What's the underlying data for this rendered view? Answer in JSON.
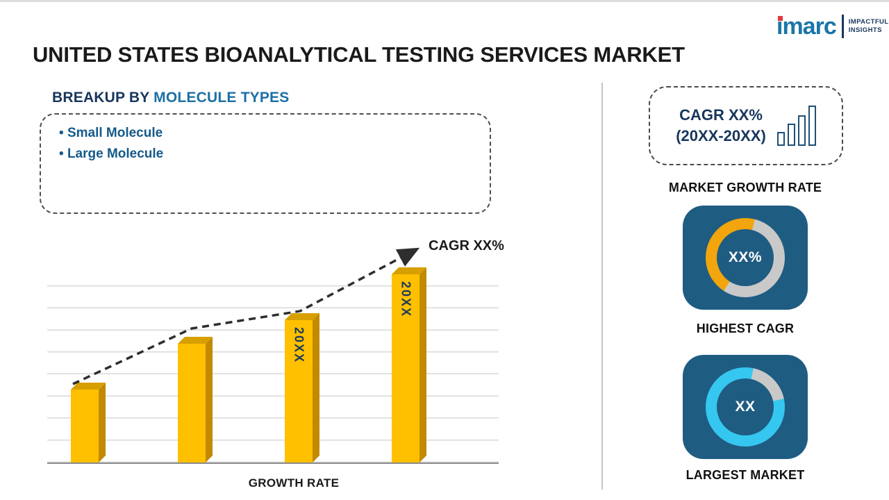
{
  "title": "UNITED STATES BIOANALYTICAL TESTING SERVICES MARKET",
  "logo": {
    "brand": "imarc",
    "tagline_line1": "IMPACTFUL",
    "tagline_line2": "INSIGHTS"
  },
  "breakup": {
    "heading_prefix": "BREAKUP BY",
    "heading_highlight": "MOLECULE TYPES",
    "items": [
      {
        "label": "Small Molecule"
      },
      {
        "label": "Large Molecule"
      }
    ]
  },
  "chart_data": {
    "type": "bar",
    "categories": [
      "",
      "",
      "20XX",
      "20XX"
    ],
    "values": [
      37,
      60,
      72,
      95
    ],
    "bar_labels": [
      "",
      "",
      "20XX",
      "20XX"
    ],
    "trend_label": "CAGR XX%",
    "title": "",
    "xlabel": "GROWTH RATE",
    "ylabel": "",
    "ylim": [
      0,
      100
    ],
    "grid": true,
    "legend": false,
    "bar_color": "#ffc000",
    "trend_style": "dashed-arrow"
  },
  "side_panel": {
    "cagr_card": {
      "line1": "CAGR XX%",
      "line2": "(20XX-20XX)"
    },
    "market_growth_rate_label": "MARKET GROWTH RATE",
    "highest_cagr": {
      "value": "XX%",
      "label": "HIGHEST CAGR"
    },
    "largest_market": {
      "value": "XX",
      "label": "LARGEST MARKET"
    }
  },
  "colors": {
    "ink": "#1a1a1a",
    "navy": "#1f5c82",
    "heading-dark": "#17365c",
    "heading-blue": "#1d6fa5",
    "bullet-blue": "#155a8a",
    "gold": "#ffc000",
    "gold-side": "#c18a00",
    "gold-top": "#d79f00",
    "bar-label": "#1b3a5c",
    "cyan": "#35c7f0",
    "silver": "#c9c9c9",
    "orange": "#f2a50c",
    "logo-blue": "#1b75a9",
    "logo-dark": "#17365c",
    "logo-red": "#e23b3f",
    "trend": "#2e2e2e",
    "grid-line": "#d9d9d9",
    "divider": "#c4c4c4"
  }
}
